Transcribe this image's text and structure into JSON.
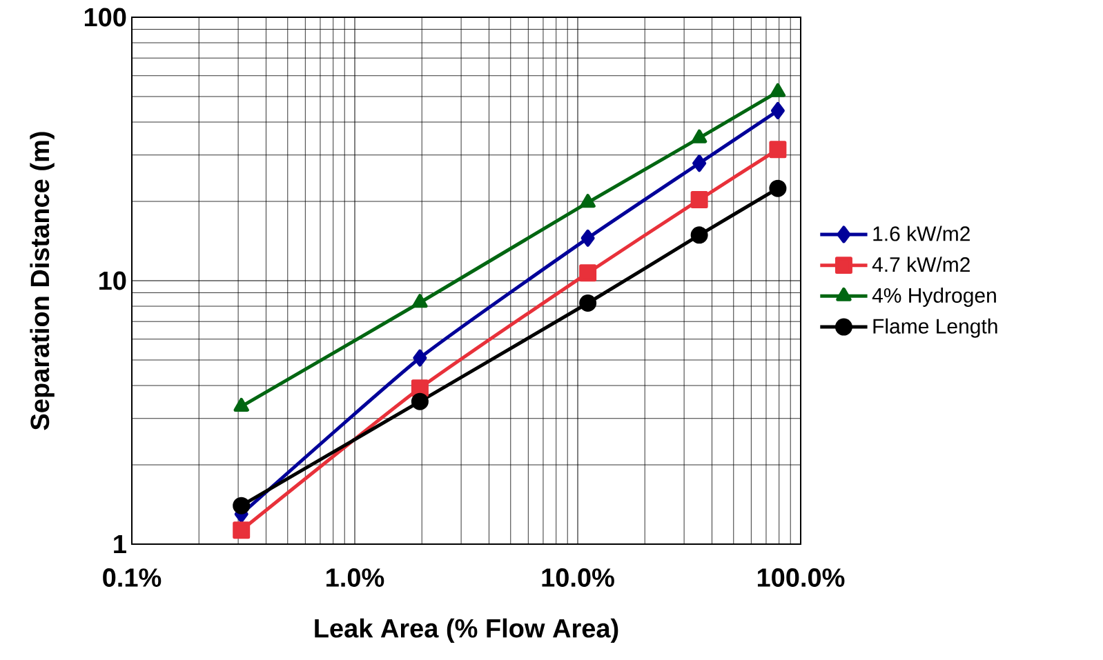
{
  "chart_data": {
    "type": "line",
    "xlabel": "Leak Area (% Flow Area)",
    "ylabel": "Separation Distance (m)",
    "x": [
      0.31,
      1.96,
      11.1,
      35.1,
      79
    ],
    "series": [
      {
        "name": "1.6 kW/m2",
        "color": "#000099",
        "marker": "diamond",
        "values": [
          1.3,
          5.09,
          14.5,
          27.9,
          44.2
        ]
      },
      {
        "name": "4.7 kW/m2",
        "color": "#e8313a",
        "marker": "square",
        "values": [
          1.13,
          3.91,
          10.7,
          20.3,
          31.5
        ]
      },
      {
        "name": "4% Hydrogen",
        "color": "#006611",
        "marker": "triangle",
        "values": [
          3.33,
          8.26,
          19.8,
          34.8,
          52.1
        ]
      },
      {
        "name": "Flame Length",
        "color": "#000000",
        "marker": "circle",
        "values": [
          1.4,
          3.48,
          8.22,
          14.9,
          22.4
        ]
      }
    ],
    "log": "xy",
    "xlim": [
      0.1,
      100
    ],
    "ylim": [
      1,
      100
    ],
    "xticks": [
      {
        "value": 0.1,
        "label": "0.1%"
      },
      {
        "value": 1,
        "label": "1.0%"
      },
      {
        "value": 10,
        "label": "10.0%"
      },
      {
        "value": 100,
        "label": "100.0%"
      }
    ],
    "yticks": [
      1,
      10,
      100
    ],
    "grid": true,
    "legend": "right",
    "line_style": "solid"
  }
}
